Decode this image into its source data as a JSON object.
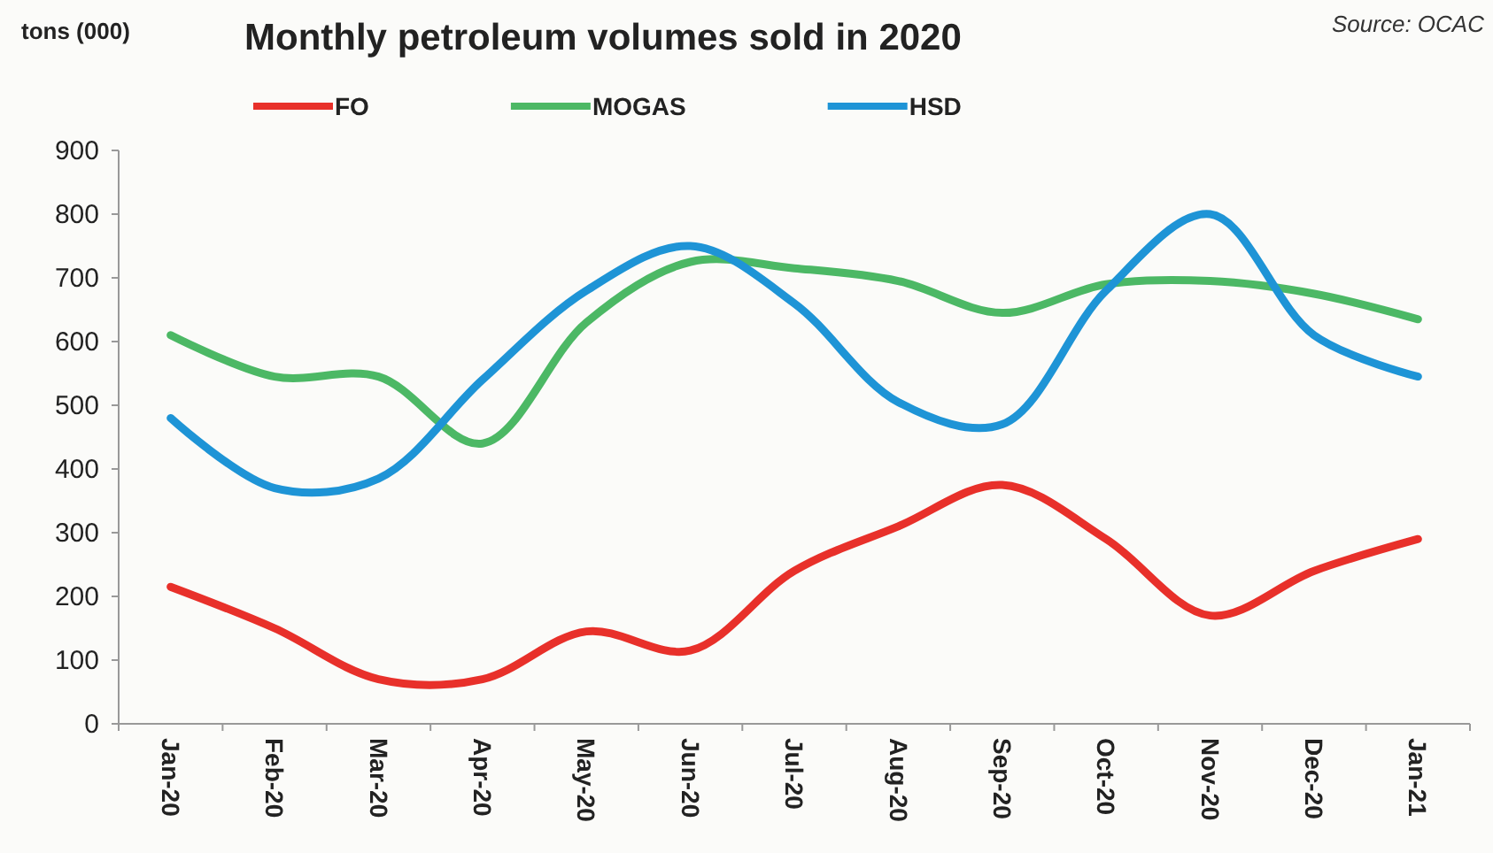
{
  "chart_data": {
    "type": "line",
    "title": "Monthly petroleum volumes sold in 2020",
    "ylabel": "tons (000)",
    "annotations": [
      "Source: OCAC"
    ],
    "categories": [
      "Jan-20",
      "Feb-20",
      "Mar-20",
      "Apr-20",
      "May-20",
      "Jun-20",
      "Jul-20",
      "Aug-20",
      "Sep-20",
      "Oct-20",
      "Nov-20",
      "Dec-20",
      "Jan-21"
    ],
    "series": [
      {
        "name": "FO",
        "color": "#e8302a",
        "values": [
          215,
          150,
          70,
          70,
          145,
          115,
          240,
          310,
          375,
          290,
          170,
          240,
          290
        ]
      },
      {
        "name": "MOGAS",
        "color": "#4cb865",
        "values": [
          610,
          545,
          545,
          440,
          630,
          725,
          715,
          695,
          645,
          690,
          695,
          675,
          635
        ]
      },
      {
        "name": "HSD",
        "color": "#1e94d6",
        "values": [
          480,
          370,
          385,
          540,
          680,
          750,
          660,
          505,
          470,
          680,
          800,
          610,
          545
        ]
      }
    ],
    "ylim": [
      0,
      900
    ],
    "yticks": [
      0,
      100,
      200,
      300,
      400,
      500,
      600,
      700,
      800,
      900
    ],
    "grid": false,
    "legend": "top",
    "marker": "none",
    "line_style": "solid"
  }
}
